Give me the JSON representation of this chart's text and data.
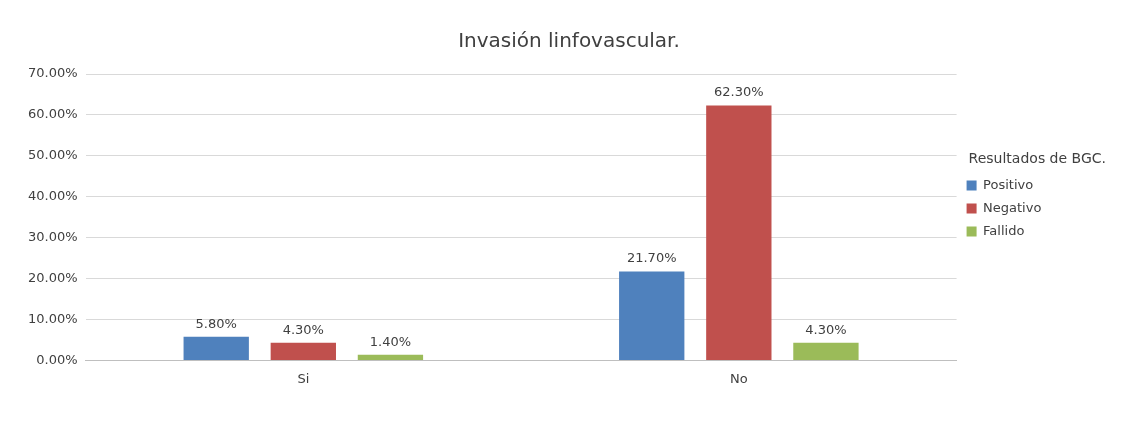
{
  "chart_data": {
    "type": "bar",
    "title": "Invasión linfovascular.",
    "legend_title": "Resultados de BGC.",
    "categories": [
      "Si",
      "No"
    ],
    "series": [
      {
        "name": "Positivo",
        "color": "#4f81bd",
        "values": [
          5.8,
          21.7
        ],
        "value_labels": [
          "5.80%",
          "21.70%"
        ]
      },
      {
        "name": "Negativo",
        "color": "#c0504d",
        "values": [
          4.3,
          62.3
        ],
        "value_labels": [
          "4.30%",
          "62.30%"
        ]
      },
      {
        "name": "Fallido",
        "color": "#9bbb59",
        "values": [
          1.4,
          4.3
        ],
        "value_labels": [
          "1.40%",
          "4.30%"
        ]
      }
    ],
    "ylim": [
      0,
      70
    ],
    "yticks": [
      {
        "value": 0,
        "label": "0.00%"
      },
      {
        "value": 10,
        "label": "10.00%"
      },
      {
        "value": 20,
        "label": "20.00%"
      },
      {
        "value": 30,
        "label": "30.00%"
      },
      {
        "value": 40,
        "label": "40.00%"
      },
      {
        "value": 50,
        "label": "50.00%"
      },
      {
        "value": 60,
        "label": "60.00%"
      },
      {
        "value": 70,
        "label": "70.00%"
      }
    ],
    "grid": "y",
    "legend": "right"
  }
}
